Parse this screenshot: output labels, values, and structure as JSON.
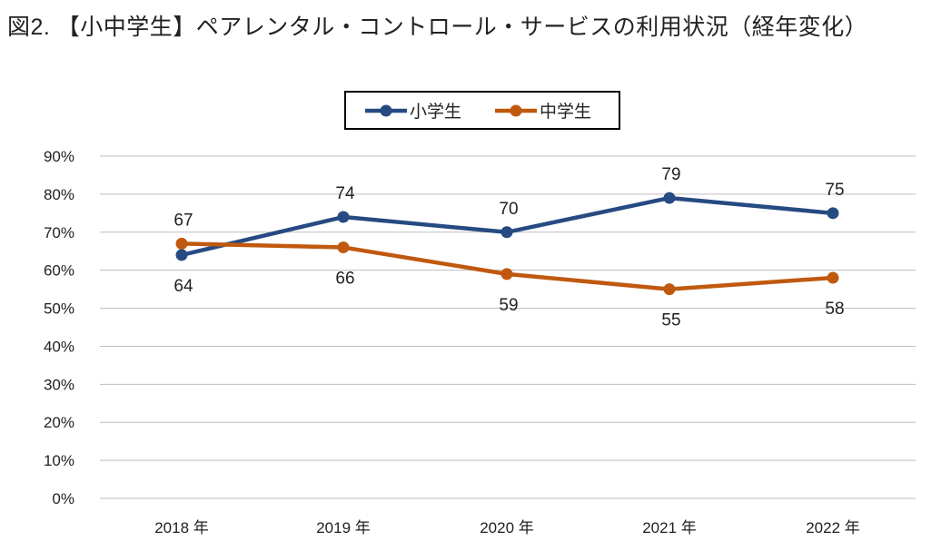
{
  "chart_data": {
    "type": "line",
    "title": "図2. 【小中学生】ペアレンタル・コントロール・サービスの利用状況（経年変化）",
    "categories": [
      "2018 年",
      "2019 年",
      "2020 年",
      "2021 年",
      "2022 年"
    ],
    "series": [
      {
        "name": "小学生",
        "values": [
          64,
          74,
          70,
          79,
          75
        ],
        "color": "#264A82"
      },
      {
        "name": "中学生",
        "values": [
          67,
          66,
          59,
          55,
          58
        ],
        "color": "#C0590F"
      }
    ],
    "yticks": [
      "0%",
      "10%",
      "20%",
      "30%",
      "40%",
      "50%",
      "60%",
      "70%",
      "80%",
      "90%"
    ],
    "ylim": [
      0,
      90
    ],
    "grid": true,
    "legend": "top-center",
    "xlabel": "",
    "ylabel": ""
  }
}
